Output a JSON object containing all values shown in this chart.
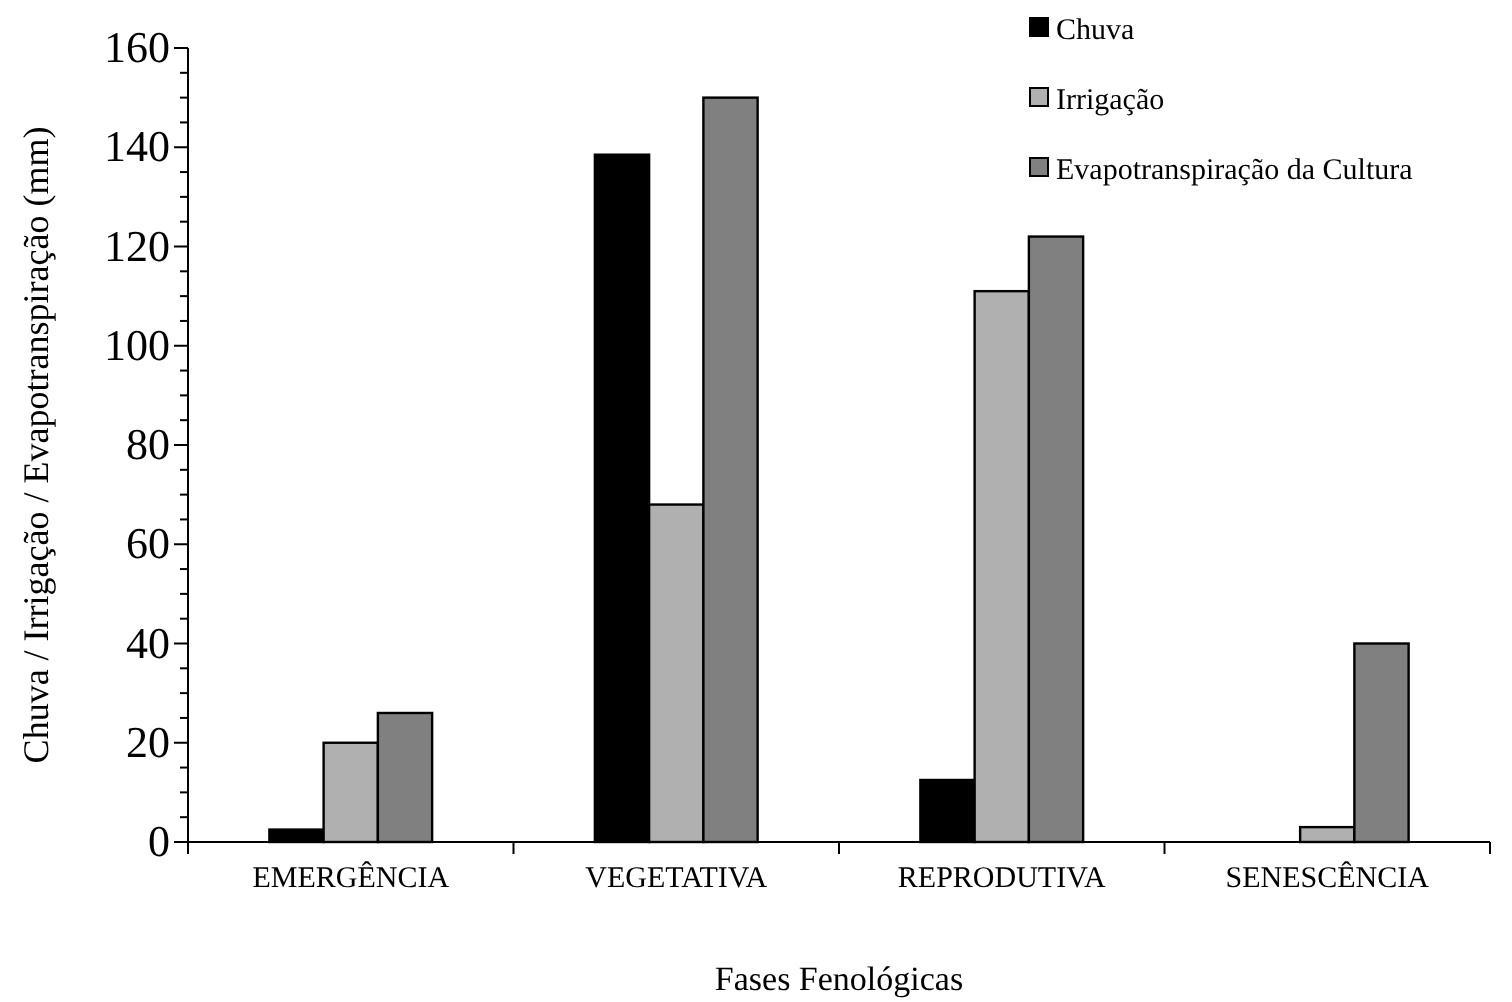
{
  "chart_data": {
    "type": "bar",
    "xlabel": "Fases Fenológicas",
    "ylabel": "Chuva / Irrigação / Evapotranspiração (mm)",
    "categories": [
      "EMERGÊNCIA",
      "VEGETATIVA",
      "REPRODUTIVA",
      "SENESCÊNCIA"
    ],
    "series": [
      {
        "name": "Chuva",
        "color": "#000000",
        "values": [
          2.5,
          138.5,
          12.5,
          null
        ]
      },
      {
        "name": "Irrigação",
        "color": "#b0b0b0",
        "values": [
          20,
          68,
          111,
          3
        ]
      },
      {
        "name": "Evapotranspiração da Cultura",
        "color": "#808080",
        "values": [
          26,
          150,
          122,
          40
        ]
      }
    ],
    "ylim": [
      0,
      160
    ],
    "yticks": [
      0,
      {
        "value": 5,
        "label": null
      },
      {
        "value": 10,
        "label": null
      },
      {
        "value": 15,
        "label": null
      },
      20,
      {
        "value": 25,
        "label": null
      },
      {
        "value": 30,
        "label": null
      },
      {
        "value": 35,
        "label": null
      },
      40,
      {
        "value": 45,
        "label": null
      },
      {
        "value": 50,
        "label": null
      },
      {
        "value": 55,
        "label": null
      },
      60,
      {
        "value": 65,
        "label": null
      },
      {
        "value": 70,
        "label": null
      },
      {
        "value": 75,
        "label": null
      },
      80,
      {
        "value": 85,
        "label": null
      },
      {
        "value": 90,
        "label": null
      },
      {
        "value": 95,
        "label": null
      },
      100,
      {
        "value": 105,
        "label": null
      },
      {
        "value": 110,
        "label": null
      },
      {
        "value": 115,
        "label": null
      },
      120,
      {
        "value": 125,
        "label": null
      },
      {
        "value": 130,
        "label": null
      },
      {
        "value": 135,
        "label": null
      },
      140,
      {
        "value": 145,
        "label": null
      },
      {
        "value": 150,
        "label": null
      },
      {
        "value": 155,
        "label": null
      },
      160
    ],
    "grid": false,
    "legend": "top right"
  }
}
